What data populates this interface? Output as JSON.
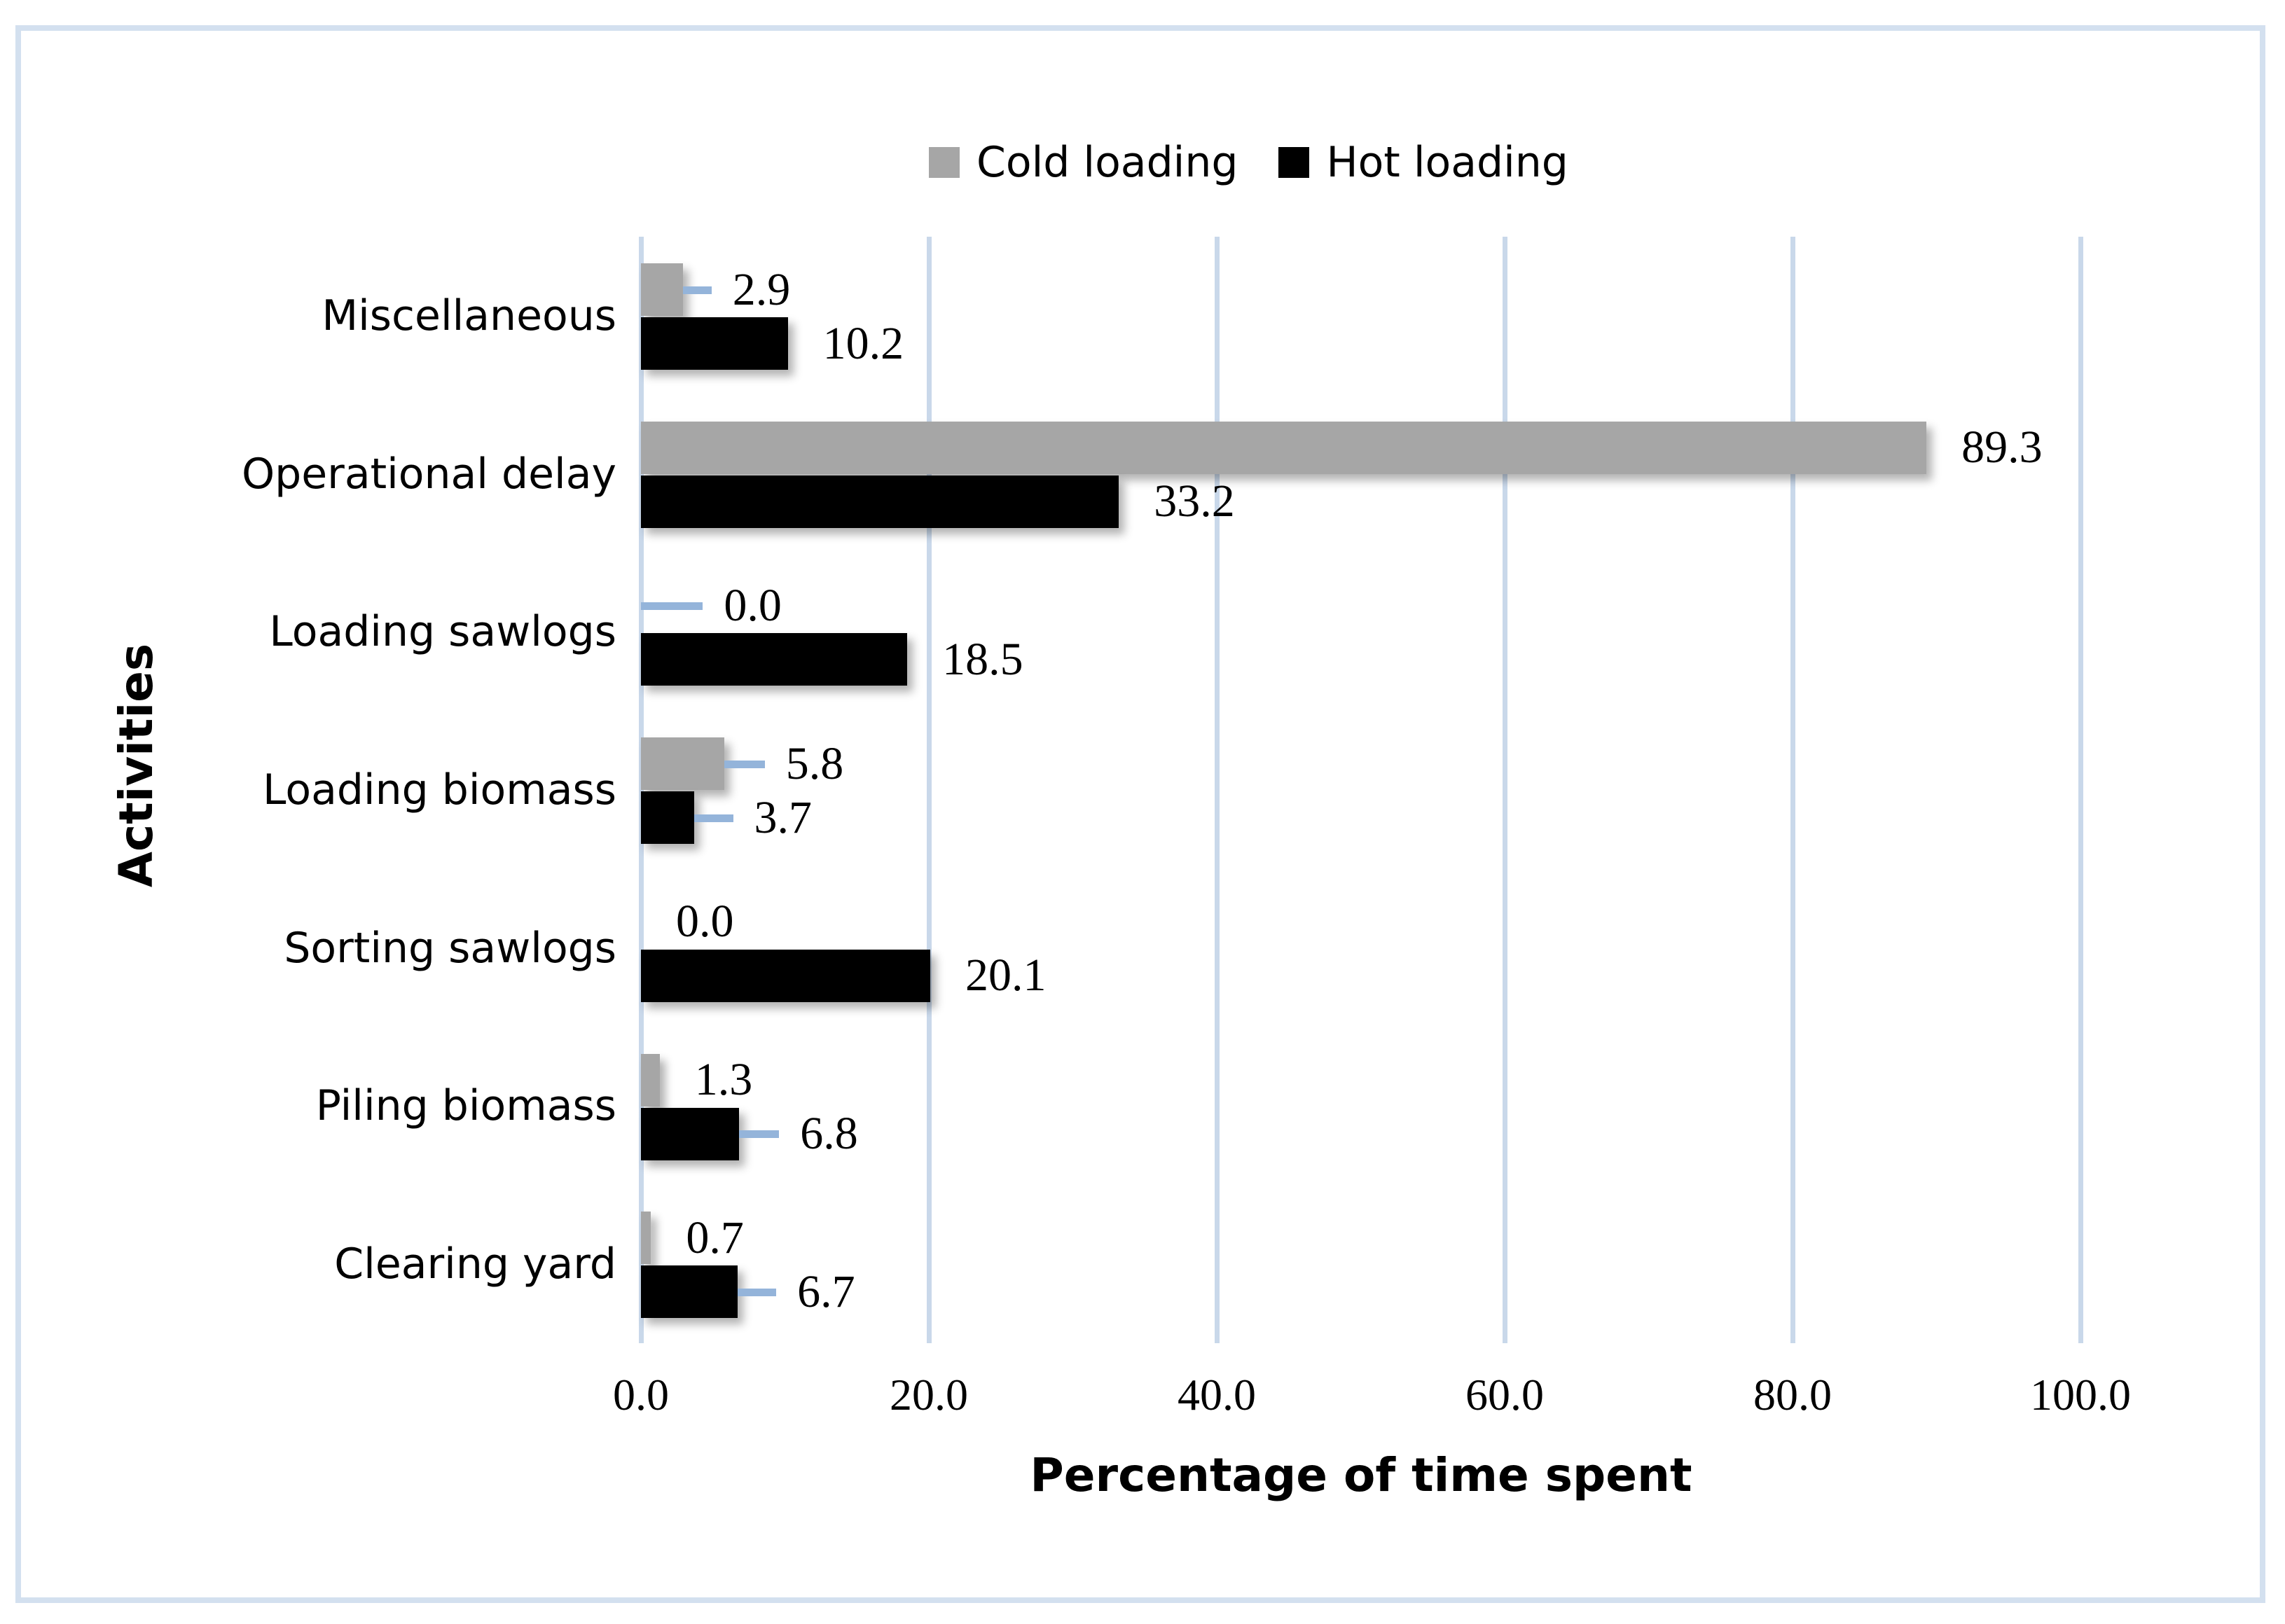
{
  "figure": {
    "background": "#ffffff",
    "border_color": "#d3e0ef"
  },
  "chart_data": {
    "type": "bar",
    "orientation": "horizontal",
    "title": "",
    "categories": [
      "Miscellaneous",
      "Operational delay",
      "Loading sawlogs",
      "Loading biomass",
      "Sorting sawlogs",
      "Piling biomass",
      "Clearing yard"
    ],
    "series": [
      {
        "name": "Cold loading",
        "color": "#a6a6a6",
        "values": [
          2.9,
          89.3,
          0.0,
          5.8,
          0.0,
          1.3,
          0.7
        ],
        "value_labels": [
          "2.9",
          "89.3",
          "0.0",
          "5.8",
          "0.0",
          "1.3",
          "0.7"
        ],
        "error_bars": [
          2.0,
          null,
          4.3,
          2.8,
          null,
          null,
          null
        ]
      },
      {
        "name": "Hot loading",
        "color": "#000000",
        "values": [
          10.2,
          33.2,
          18.5,
          3.7,
          20.1,
          6.8,
          6.7
        ],
        "value_labels": [
          "10.2",
          "33.2",
          "18.5",
          "3.7",
          "20.1",
          "6.8",
          "6.7"
        ],
        "error_bars": [
          null,
          null,
          null,
          2.7,
          null,
          2.8,
          2.7
        ]
      }
    ],
    "xlabel": "Percentage of time spent",
    "ylabel": "Activities",
    "x_ticks": [
      {
        "value": 0,
        "label": "0.0"
      },
      {
        "value": 20,
        "label": "20.0"
      },
      {
        "value": 40,
        "label": "40.0"
      },
      {
        "value": 60,
        "label": "60.0"
      },
      {
        "value": 80,
        "label": "80.0"
      },
      {
        "value": 100,
        "label": "100.0"
      }
    ],
    "xlim": [
      0,
      100
    ],
    "gridlines": true,
    "gridline_color": "#c9d8ea",
    "error_bar_color": "#94b4da",
    "legend_position": "top"
  }
}
